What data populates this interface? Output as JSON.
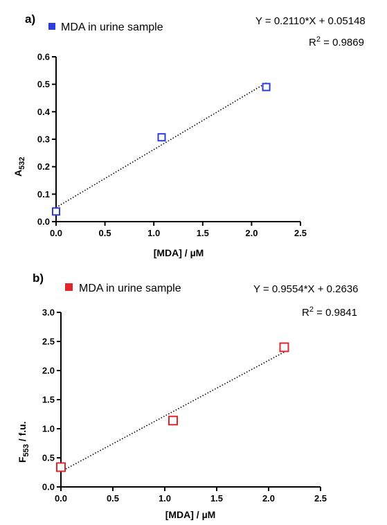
{
  "chart_data": [
    {
      "type": "scatter",
      "panel_label": "a)",
      "xlabel": "[MDA] / µM",
      "ylabel_main": "A",
      "ylabel_sub": "532",
      "ylabel_suffix": "",
      "xlim": [
        0,
        2.5
      ],
      "ylim": [
        0,
        0.6
      ],
      "xticks": [
        "0.0",
        "0.5",
        "1.0",
        "1.5",
        "2.0",
        "2.5"
      ],
      "yticks": [
        "0.0",
        "0.1",
        "0.2",
        "0.3",
        "0.4",
        "0.5",
        "0.6"
      ],
      "color": "#2b3de0",
      "series": [
        {
          "name": "MDA in urine sample",
          "x": [
            0,
            1.08,
            2.15
          ],
          "y": [
            0.037,
            0.307,
            0.49
          ]
        }
      ],
      "fit": {
        "slope": 0.211,
        "intercept": 0.05148,
        "x_range": [
          0,
          2.15
        ]
      },
      "equation": "Y = 0.2110*X + 0.05148",
      "r2_prefix": "R",
      "r2_sup": "2",
      "r2_value": " = 0.9869",
      "legend": "top-left",
      "grid": false
    },
    {
      "type": "scatter",
      "panel_label": "b)",
      "xlabel": "[MDA] / µM",
      "ylabel_main": "F",
      "ylabel_sub": "553",
      "ylabel_suffix": " / f.u.",
      "xlim": [
        0,
        2.5
      ],
      "ylim": [
        0,
        3.0
      ],
      "xticks": [
        "0.0",
        "0.5",
        "1.0",
        "1.5",
        "2.0",
        "2.5"
      ],
      "yticks": [
        "0.0",
        "0.5",
        "1.0",
        "1.5",
        "2.0",
        "2.5",
        "3.0"
      ],
      "color": "#e0262b",
      "series": [
        {
          "name": "MDA in urine sample",
          "x": [
            0,
            1.08,
            2.15
          ],
          "y": [
            0.34,
            1.14,
            2.4
          ]
        }
      ],
      "fit": {
        "slope": 0.9554,
        "intercept": 0.2636,
        "x_range": [
          0,
          2.15
        ]
      },
      "equation": "Y = 0.9554*X + 0.2636",
      "r2_prefix": "R",
      "r2_sup": "2",
      "r2_value": " = 0.9841",
      "legend": "top-left",
      "grid": false
    }
  ]
}
